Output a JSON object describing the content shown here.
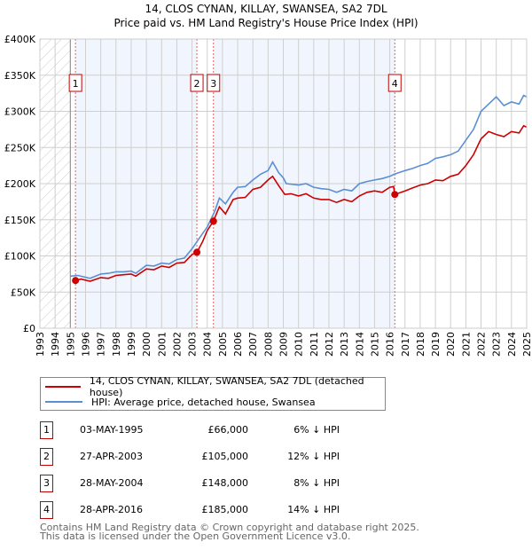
{
  "chart_data": {
    "type": "line",
    "title": "14, CLOS CYNAN, KILLAY, SWANSEA, SA2 7DL",
    "subtitle": "Price paid vs. HM Land Registry's House Price Index (HPI)",
    "xlim": [
      1993,
      2025
    ],
    "ylim": [
      0,
      400000
    ],
    "x_ticks": [
      "1993",
      "1994",
      "1995",
      "1996",
      "1997",
      "1998",
      "1999",
      "2000",
      "2001",
      "2002",
      "2003",
      "2004",
      "2005",
      "2006",
      "2007",
      "2008",
      "2009",
      "2010",
      "2011",
      "2012",
      "2013",
      "2014",
      "2015",
      "2016",
      "2017",
      "2018",
      "2019",
      "2020",
      "2021",
      "2022",
      "2023",
      "2024",
      "2025"
    ],
    "y_ticks": [
      {
        "v": 0,
        "label": "£0"
      },
      {
        "v": 50000,
        "label": "£50K"
      },
      {
        "v": 100000,
        "label": "£100K"
      },
      {
        "v": 150000,
        "label": "£150K"
      },
      {
        "v": 200000,
        "label": "£200K"
      },
      {
        "v": 250000,
        "label": "£250K"
      },
      {
        "v": 300000,
        "label": "£300K"
      },
      {
        "v": 350000,
        "label": "£350K"
      },
      {
        "v": 400000,
        "label": "£400K"
      }
    ],
    "grid": true,
    "series": [
      {
        "name": "14, CLOS CYNAN, KILLAY, SWANSEA, SA2 7DL (detached house)",
        "color": "#cc0000",
        "x": [
          1995.33,
          1995.7,
          1996.3,
          1997,
          1997.5,
          1998,
          1998.5,
          1999,
          1999.3,
          2000,
          2000.5,
          2001,
          2001.5,
          2002,
          2002.5,
          2003,
          2003.33,
          2003.7,
          2004,
          2004.4,
          2004.8,
          2005.2,
          2005.7,
          2006,
          2006.5,
          2007,
          2007.5,
          2008,
          2008.3,
          2008.7,
          2009.1,
          2009.5,
          2010,
          2010.5,
          2011,
          2011.5,
          2012,
          2012.5,
          2013,
          2013.5,
          2014,
          2014.5,
          2015,
          2015.5,
          2016,
          2016.25,
          2016.33,
          2017,
          2017.5,
          2018,
          2018.5,
          2019,
          2019.5,
          2020,
          2020.5,
          2021,
          2021.5,
          2022,
          2022.5,
          2023,
          2023.5,
          2024,
          2024.5,
          2024.8,
          2025
        ],
        "y": [
          66000,
          68000,
          65000,
          70000,
          69000,
          73000,
          74000,
          75000,
          72000,
          82000,
          81000,
          86000,
          84000,
          90000,
          91000,
          102000,
          105000,
          120000,
          135000,
          148000,
          168000,
          158000,
          178000,
          180000,
          181000,
          192000,
          195000,
          205000,
          210000,
          197000,
          185000,
          186000,
          183000,
          186000,
          180000,
          178000,
          178000,
          174000,
          178000,
          175000,
          183000,
          188000,
          190000,
          188000,
          195000,
          196000,
          185000,
          190000,
          194000,
          198000,
          200000,
          205000,
          204000,
          210000,
          213000,
          225000,
          240000,
          262000,
          272000,
          268000,
          265000,
          272000,
          270000,
          280000,
          278000
        ]
      },
      {
        "name": "HPI: Average price, detached house, Swansea",
        "color": "#5b8fd4",
        "x": [
          1995,
          1995.5,
          1996.3,
          1997,
          1997.5,
          1998,
          1998.5,
          1999,
          1999.3,
          2000,
          2000.5,
          2001,
          2001.5,
          2002,
          2002.5,
          2003,
          2003.5,
          2004,
          2004.5,
          2004.8,
          2005.2,
          2005.7,
          2006,
          2006.5,
          2007,
          2007.5,
          2008,
          2008.3,
          2008.7,
          2009,
          2009.2,
          2010,
          2010.5,
          2011,
          2011.5,
          2012,
          2012.5,
          2013,
          2013.5,
          2014,
          2014.5,
          2015,
          2015.5,
          2016,
          2016.3,
          2017,
          2017.5,
          2018,
          2018.5,
          2019,
          2019.5,
          2020,
          2020.5,
          2021,
          2021.5,
          2022,
          2022.5,
          2023,
          2023.5,
          2024,
          2024.5,
          2024.8,
          2025
        ],
        "y": [
          72000,
          73000,
          69000,
          75000,
          76000,
          78000,
          78000,
          79000,
          76000,
          87000,
          86000,
          90000,
          89000,
          95000,
          97000,
          110000,
          125000,
          140000,
          162000,
          180000,
          172000,
          188000,
          195000,
          196000,
          205000,
          213000,
          218000,
          230000,
          215000,
          208000,
          200000,
          198000,
          200000,
          195000,
          193000,
          192000,
          188000,
          192000,
          190000,
          200000,
          203000,
          205000,
          207000,
          210000,
          213000,
          218000,
          221000,
          225000,
          228000,
          235000,
          237000,
          240000,
          245000,
          260000,
          275000,
          300000,
          310000,
          320000,
          308000,
          313000,
          310000,
          322000,
          320000
        ]
      }
    ],
    "shaded_ranges": [
      [
        1995.33,
        2003.32
      ],
      [
        2004.41,
        2016.33
      ]
    ],
    "hatched_range": [
      1993,
      1995
    ],
    "annotations": [
      {
        "label": "1",
        "x": 1995.34,
        "y": 66000
      },
      {
        "label": "2",
        "x": 2003.32,
        "y": 105000
      },
      {
        "label": "3",
        "x": 2004.41,
        "y": 148000
      },
      {
        "label": "4",
        "x": 2016.33,
        "y": 185000
      }
    ]
  },
  "legend": {
    "property": "14, CLOS CYNAN, KILLAY, SWANSEA, SA2 7DL (detached house)",
    "hpi": "HPI: Average price, detached house, Swansea"
  },
  "sales": [
    {
      "num": "1",
      "date": "03-MAY-1995",
      "price": "£66,000",
      "hpi": "6% ↓ HPI"
    },
    {
      "num": "2",
      "date": "27-APR-2003",
      "price": "£105,000",
      "hpi": "12% ↓ HPI"
    },
    {
      "num": "3",
      "date": "28-MAY-2004",
      "price": "£148,000",
      "hpi": "8% ↓ HPI"
    },
    {
      "num": "4",
      "date": "28-APR-2016",
      "price": "£185,000",
      "hpi": "14% ↓ HPI"
    }
  ],
  "footer": {
    "line1": "Contains HM Land Registry data © Crown copyright and database right 2025.",
    "line2": "This data is licensed under the Open Government Licence v3.0."
  }
}
